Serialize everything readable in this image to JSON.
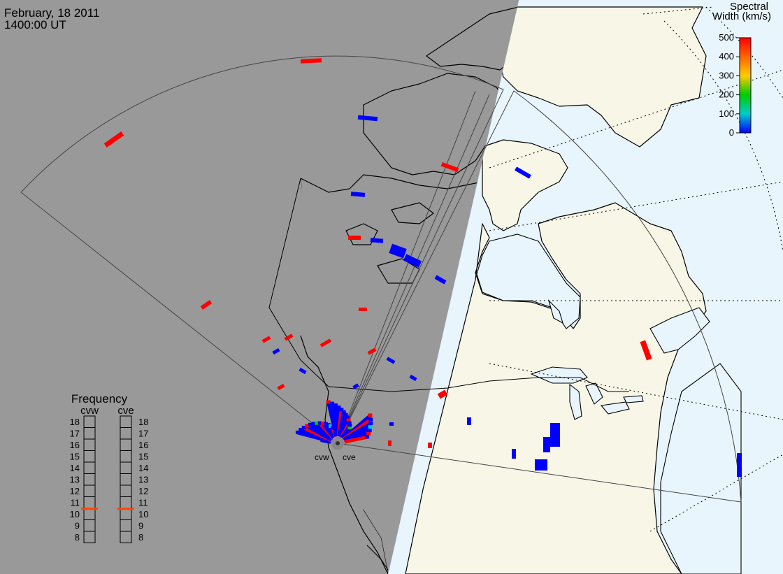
{
  "header": {
    "date": "February, 18 2011",
    "time": "1400:00 UT"
  },
  "colorbar": {
    "title_line1": "Spectral",
    "title_line2": "Width (km/s)",
    "ticks": [
      "500",
      "400",
      "300",
      "200",
      "100",
      "0"
    ],
    "stops": [
      "#ff0000",
      "#ff6600",
      "#ffcc00",
      "#00cc00",
      "#00cccc",
      "#0000ff"
    ]
  },
  "frequency": {
    "title": "Frequency",
    "radars": [
      {
        "name": "cvw",
        "value_mhz": 11
      },
      {
        "name": "cve",
        "value_mhz": 11
      }
    ],
    "scale": [
      "18",
      "17",
      "16",
      "15",
      "14",
      "13",
      "12",
      "11",
      "10",
      "9",
      "8"
    ],
    "marker_color": "#ff4400"
  },
  "radar_labels": [
    "cvw",
    "cve"
  ],
  "colors": {
    "night": "#999999",
    "day_land": "#f7f6e7",
    "day_ocean": "#e8f5fc",
    "high_width": "#ff0000",
    "low_width": "#0000ff"
  }
}
